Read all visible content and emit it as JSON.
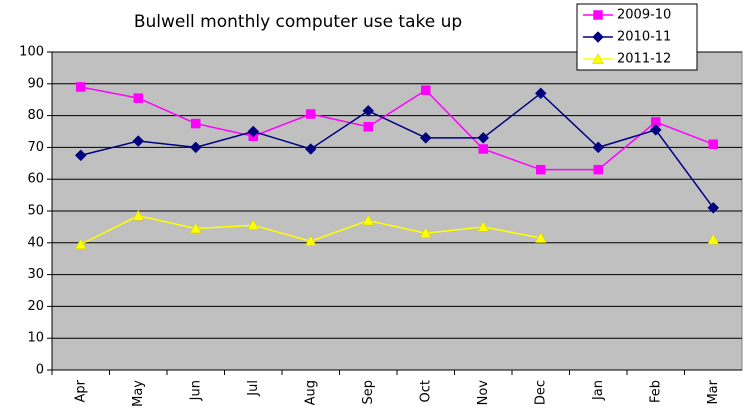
{
  "chart_data": {
    "type": "line",
    "title": "Bulwell monthly computer use take up",
    "categories": [
      "Apr",
      "May",
      "Jun",
      "Jul",
      "Aug",
      "Sep",
      "Oct",
      "Nov",
      "Dec",
      "Jan",
      "Feb",
      "Mar"
    ],
    "series": [
      {
        "name": "2009-10",
        "color": "#ff00ff",
        "marker": "square",
        "values": [
          89,
          85.5,
          77.5,
          73.5,
          80.5,
          76.5,
          88,
          69.5,
          63,
          63,
          78,
          71
        ]
      },
      {
        "name": "2010-11",
        "color": "#000080",
        "marker": "diamond",
        "values": [
          67.5,
          72,
          70,
          75,
          69.5,
          81.5,
          73,
          73,
          87,
          70,
          75.5,
          51
        ]
      },
      {
        "name": "2011-12",
        "color": "#ffff00",
        "marker": "triangle",
        "values": [
          39.5,
          48.5,
          44.5,
          45.5,
          40.5,
          47,
          43,
          45,
          41.5,
          null,
          null,
          41
        ]
      }
    ],
    "ylim": [
      0,
      100
    ],
    "yticks": [
      0,
      10,
      20,
      30,
      40,
      50,
      60,
      70,
      80,
      90,
      100
    ],
    "grid": true,
    "legend": "top-right",
    "plot_background": "#c0c0c0"
  }
}
